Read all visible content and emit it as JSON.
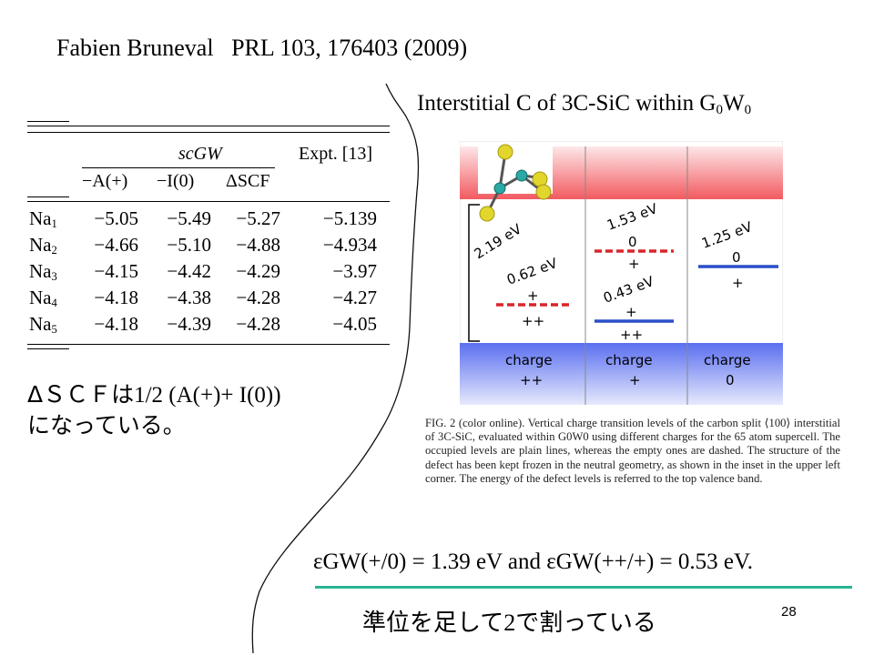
{
  "header": {
    "title": "Fabien Bruneval   PRL 103, 176403 (2009)",
    "subtitle_pre": "Interstitial C of 3C-SiC within G",
    "subtitle_sub1": "0",
    "subtitle_mid": "W",
    "subtitle_sub2": "0"
  },
  "table": {
    "group_header": "scGW",
    "expt_header": "Expt. [13]",
    "columns": [
      "−A(+)",
      "−I(0)",
      "ΔSCF"
    ],
    "rows": [
      {
        "label": "Na",
        "sub": "1",
        "values": [
          "−5.05",
          "−5.49",
          "−5.27",
          "−5.139"
        ]
      },
      {
        "label": "Na",
        "sub": "2",
        "values": [
          "−4.66",
          "−5.10",
          "−4.88",
          "−4.934"
        ]
      },
      {
        "label": "Na",
        "sub": "3",
        "values": [
          "−4.15",
          "−4.42",
          "−4.29",
          "−3.97"
        ]
      },
      {
        "label": "Na",
        "sub": "4",
        "values": [
          "−4.18",
          "−4.38",
          "−4.28",
          "−4.27"
        ]
      },
      {
        "label": "Na",
        "sub": "5",
        "values": [
          "−4.18",
          "−4.39",
          "−4.28",
          "−4.05"
        ]
      }
    ]
  },
  "note": {
    "line1_a": "ΔＳＣＦは",
    "line1_b": "1/2 (A(+)+ I(0))",
    "line2": "になっている。"
  },
  "diagram": {
    "levels": [
      "2.19 eV",
      "0.62 eV",
      "1.53 eV",
      "0.43 eV",
      "1.25 eV"
    ],
    "charges": [
      "+",
      "++",
      "0",
      "+",
      "+",
      "++",
      "0",
      "+"
    ],
    "charge_title": "charge",
    "charge_values": [
      "++",
      "+",
      "0"
    ],
    "colors": {
      "conduction": "#f25a60",
      "valence": "#5a6ff0",
      "level_line": "#2a4fc8",
      "dashed": "#d8262c"
    }
  },
  "caption": "FIG. 2 (color online).   Vertical charge transition levels of the carbon split ⟨100⟩ interstitial of 3C-SiC, evaluated within G0W0 using different charges for the 65 atom supercell. The occupied levels are plain lines, whereas the empty ones are dashed. The structure of the defect has been kept frozen in the neutral geometry, as shown in the inset in the upper left corner. The energy of the defect levels is referred to the top valence band.",
  "formula": "εGW(+/0) = 1.39 eV and εGW(++/+) = 0.53 eV.",
  "bottom_note_a": "準位を足して",
  "bottom_note_b": "2",
  "bottom_note_c": "で割っている",
  "page_number": "28"
}
